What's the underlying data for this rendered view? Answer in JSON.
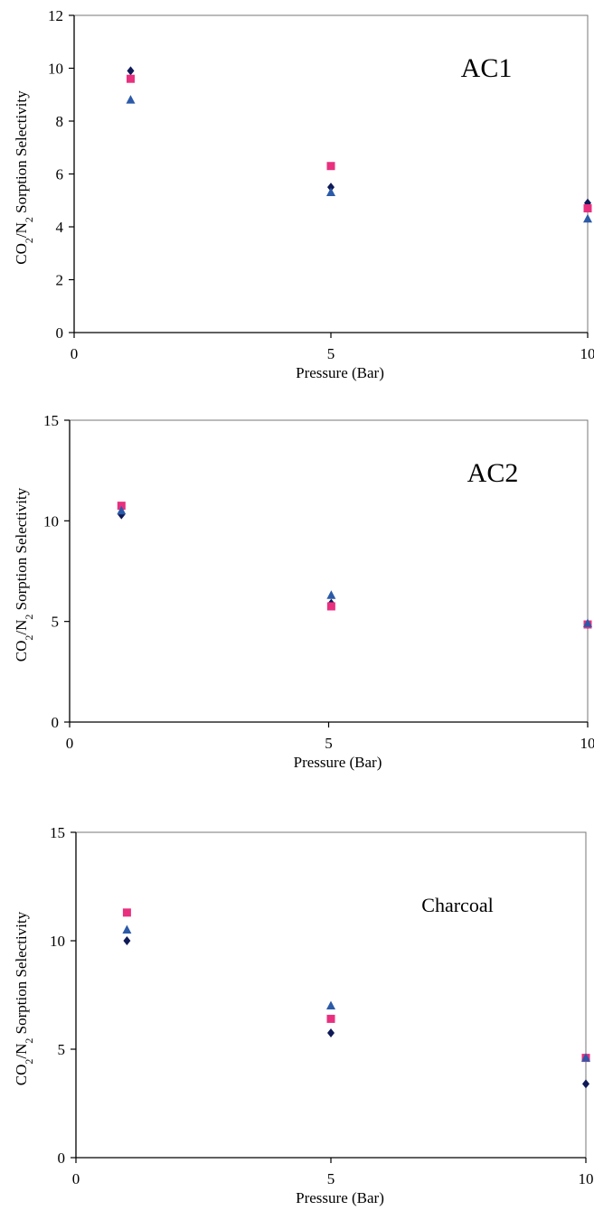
{
  "colors": {
    "series_diamond": "#0f1a57",
    "series_square": "#e8307f",
    "series_triangle": "#2b5aa8",
    "axis": "#000000",
    "frame": "#777777"
  },
  "chart_data": [
    {
      "type": "scatter",
      "title": "AC1",
      "xlabel": "Pressure (Bar)",
      "ylabel": "CO2/N2 Sorption Selectivity",
      "xlim": [
        0,
        10
      ],
      "ylim": [
        0,
        12
      ],
      "xticks": [
        "0",
        "5",
        "10"
      ],
      "yticks": [
        "0",
        "2",
        "4",
        "6",
        "8",
        "10",
        "12"
      ],
      "grid": false,
      "legend": "none",
      "series": [
        {
          "marker": "diamond",
          "x": [
            1.1,
            5,
            10
          ],
          "y": [
            9.9,
            5.5,
            4.9
          ]
        },
        {
          "marker": "square",
          "x": [
            1.1,
            5,
            10
          ],
          "y": [
            9.6,
            6.3,
            4.7
          ]
        },
        {
          "marker": "triangle",
          "x": [
            1.1,
            5,
            10
          ],
          "y": [
            8.8,
            5.3,
            4.3
          ]
        }
      ]
    },
    {
      "type": "scatter",
      "title": "AC2",
      "xlabel": "Pressure (Bar)",
      "ylabel": "CO2/N2 Sorption Selectivity",
      "xlim": [
        0,
        10
      ],
      "ylim": [
        0,
        15
      ],
      "xticks": [
        "0",
        "5",
        "10"
      ],
      "yticks": [
        "0",
        "5",
        "10",
        "15"
      ],
      "grid": false,
      "legend": "none",
      "series": [
        {
          "marker": "diamond",
          "x": [
            1.0,
            5.05,
            10
          ],
          "y": [
            10.3,
            5.9,
            4.85
          ]
        },
        {
          "marker": "square",
          "x": [
            1.0,
            5.05,
            10
          ],
          "y": [
            10.75,
            5.75,
            4.85
          ]
        },
        {
          "marker": "triangle",
          "x": [
            1.0,
            5.05,
            10
          ],
          "y": [
            10.5,
            6.3,
            4.9
          ]
        }
      ]
    },
    {
      "type": "scatter",
      "title": "Charcoal",
      "xlabel": "Pressure (Bar)",
      "ylabel": "CO2/N2 Sorption Selectivity",
      "xlim": [
        0,
        10
      ],
      "ylim": [
        0,
        15
      ],
      "xticks": [
        "0",
        "5",
        "10"
      ],
      "yticks": [
        "0",
        "5",
        "10",
        "15"
      ],
      "grid": false,
      "legend": "none",
      "series": [
        {
          "marker": "diamond",
          "x": [
            1.0,
            5.0,
            10
          ],
          "y": [
            10.0,
            5.75,
            3.4
          ]
        },
        {
          "marker": "square",
          "x": [
            1.0,
            5.0,
            10
          ],
          "y": [
            11.3,
            6.4,
            4.6
          ]
        },
        {
          "marker": "triangle",
          "x": [
            1.0,
            5.0,
            10
          ],
          "y": [
            10.5,
            7.0,
            4.6
          ]
        }
      ]
    }
  ]
}
